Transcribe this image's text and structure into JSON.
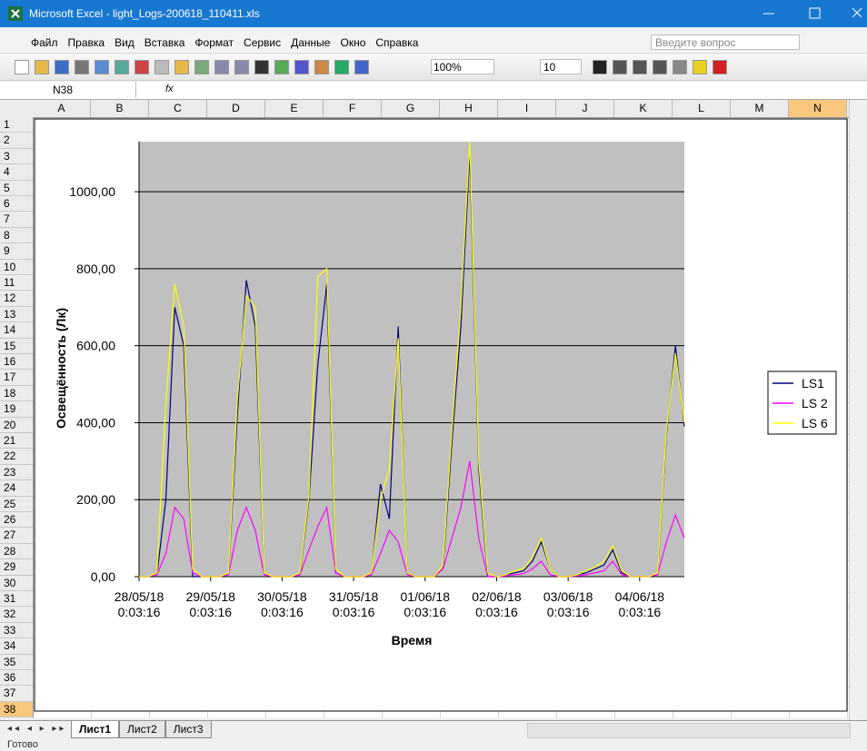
{
  "window": {
    "title": "Microsoft Excel - light_Logs-200618_110411.xls",
    "question_box": "Введите вопрос"
  },
  "menu": [
    "Файл",
    "Правка",
    "Вид",
    "Вставка",
    "Формат",
    "Сервис",
    "Данные",
    "Окно",
    "Справка"
  ],
  "toolbar": {
    "zoom": "100%",
    "font_size": "10"
  },
  "formula_bar": {
    "name_box": "N38",
    "fx": "fx"
  },
  "columns": [
    "A",
    "B",
    "C",
    "D",
    "E",
    "F",
    "G",
    "H",
    "I",
    "J",
    "K",
    "L",
    "M",
    "N"
  ],
  "rows": [
    1,
    2,
    3,
    4,
    5,
    6,
    7,
    8,
    9,
    10,
    11,
    12,
    13,
    14,
    15,
    16,
    17,
    18,
    19,
    20,
    21,
    22,
    23,
    24,
    25,
    26,
    27,
    28,
    29,
    30,
    31,
    32,
    33,
    34,
    35,
    36,
    37,
    38
  ],
  "sheets": [
    "Лист1",
    "Лист2",
    "Лист3"
  ],
  "status": "Готово",
  "chart_data": {
    "type": "line",
    "x_title": "Время",
    "y_title": "Освещённость (Лк)",
    "categories": [
      "28/05/18\n0:03:16",
      null,
      null,
      null,
      null,
      null,
      null,
      null,
      "29/05/18\n0:03:16",
      null,
      null,
      null,
      null,
      null,
      null,
      null,
      "30/05/18\n0:03:16",
      null,
      null,
      null,
      null,
      null,
      null,
      null,
      "31/05/18\n0:03:16",
      null,
      null,
      null,
      null,
      null,
      null,
      null,
      "01/06/18\n0:03:16",
      null,
      null,
      null,
      null,
      null,
      null,
      null,
      "02/06/18\n0:03:16",
      null,
      null,
      null,
      null,
      null,
      null,
      null,
      "03/06/18\n0:03:16",
      null,
      null,
      null,
      null,
      null,
      null,
      null,
      "04/06/18\n0:03:16",
      null,
      null,
      null,
      null,
      null
    ],
    "series": [
      {
        "name": "LS1",
        "color": "#000080",
        "values": [
          0,
          0,
          5,
          200,
          700,
          600,
          0,
          0,
          0,
          0,
          5,
          420,
          770,
          650,
          5,
          0,
          0,
          0,
          5,
          200,
          550,
          760,
          10,
          0,
          0,
          0,
          5,
          240,
          150,
          650,
          10,
          0,
          0,
          0,
          20,
          350,
          650,
          1100,
          280,
          0,
          0,
          5,
          10,
          15,
          40,
          90,
          20,
          0,
          0,
          5,
          10,
          20,
          30,
          70,
          10,
          0,
          0,
          0,
          5,
          370,
          600,
          390
        ]
      },
      {
        "name": "LS 2",
        "color": "#ff00ff",
        "values": [
          0,
          0,
          5,
          60,
          180,
          150,
          10,
          0,
          0,
          0,
          5,
          120,
          180,
          120,
          5,
          0,
          0,
          0,
          5,
          70,
          130,
          180,
          10,
          0,
          0,
          0,
          5,
          60,
          120,
          90,
          5,
          0,
          0,
          0,
          20,
          100,
          180,
          300,
          100,
          0,
          0,
          2,
          5,
          8,
          20,
          40,
          5,
          0,
          0,
          2,
          5,
          10,
          15,
          40,
          5,
          0,
          0,
          0,
          5,
          90,
          160,
          100
        ]
      },
      {
        "name": "LS 6",
        "color": "#ffff00",
        "values": [
          0,
          0,
          10,
          450,
          760,
          650,
          20,
          0,
          0,
          0,
          10,
          460,
          730,
          700,
          10,
          0,
          0,
          0,
          10,
          210,
          780,
          800,
          20,
          0,
          0,
          0,
          10,
          200,
          280,
          620,
          10,
          0,
          0,
          0,
          30,
          380,
          700,
          1130,
          300,
          10,
          0,
          5,
          15,
          20,
          50,
          100,
          20,
          0,
          0,
          5,
          15,
          25,
          40,
          80,
          15,
          0,
          0,
          0,
          10,
          380,
          580,
          400
        ]
      }
    ],
    "ylim": [
      0,
      1130
    ],
    "yticks": [
      {
        "value": 0,
        "label": "0,00"
      },
      {
        "value": 200,
        "label": "200,00"
      },
      {
        "value": 400,
        "label": "400,00"
      },
      {
        "value": 600,
        "label": "600,00"
      },
      {
        "value": 800,
        "label": "800,00"
      },
      {
        "value": 1000,
        "label": "1000,00"
      }
    ],
    "grid": true,
    "plot_background": "#c0c0c0",
    "legend": "right"
  }
}
